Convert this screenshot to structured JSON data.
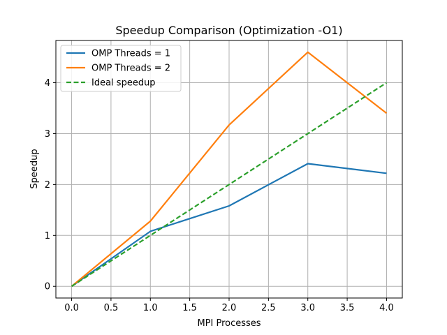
{
  "chart_data": {
    "type": "line",
    "title": "Speedup Comparison (Optimization -O1)",
    "xlabel": "MPI Processes",
    "ylabel": "Speedup",
    "xlim": [
      -0.2,
      4.2
    ],
    "ylim": [
      -0.23,
      4.83
    ],
    "xticks": [
      0.0,
      0.5,
      1.0,
      1.5,
      2.0,
      2.5,
      3.0,
      3.5,
      4.0
    ],
    "xtick_labels": [
      "0.0",
      "0.5",
      "1.0",
      "1.5",
      "2.0",
      "2.5",
      "3.0",
      "3.5",
      "4.0"
    ],
    "yticks": [
      0,
      1,
      2,
      3,
      4
    ],
    "ytick_labels": [
      "0",
      "1",
      "2",
      "3",
      "4"
    ],
    "grid": true,
    "legend_position": "top-left",
    "series": [
      {
        "name": "OMP Threads = 1",
        "color": "#1f77b4",
        "style": "solid",
        "x": [
          0,
          1,
          2,
          3,
          4
        ],
        "y": [
          0,
          1.08,
          1.58,
          2.41,
          2.22
        ]
      },
      {
        "name": "OMP Threads = 2",
        "color": "#ff7f0e",
        "style": "solid",
        "x": [
          0,
          1,
          2,
          3,
          4
        ],
        "y": [
          0,
          1.28,
          3.17,
          4.6,
          3.4
        ]
      },
      {
        "name": "Ideal speedup",
        "color": "#2ca02c",
        "style": "dashed",
        "x": [
          0,
          1,
          2,
          3,
          4
        ],
        "y": [
          0,
          1,
          2,
          3,
          4
        ]
      }
    ]
  }
}
